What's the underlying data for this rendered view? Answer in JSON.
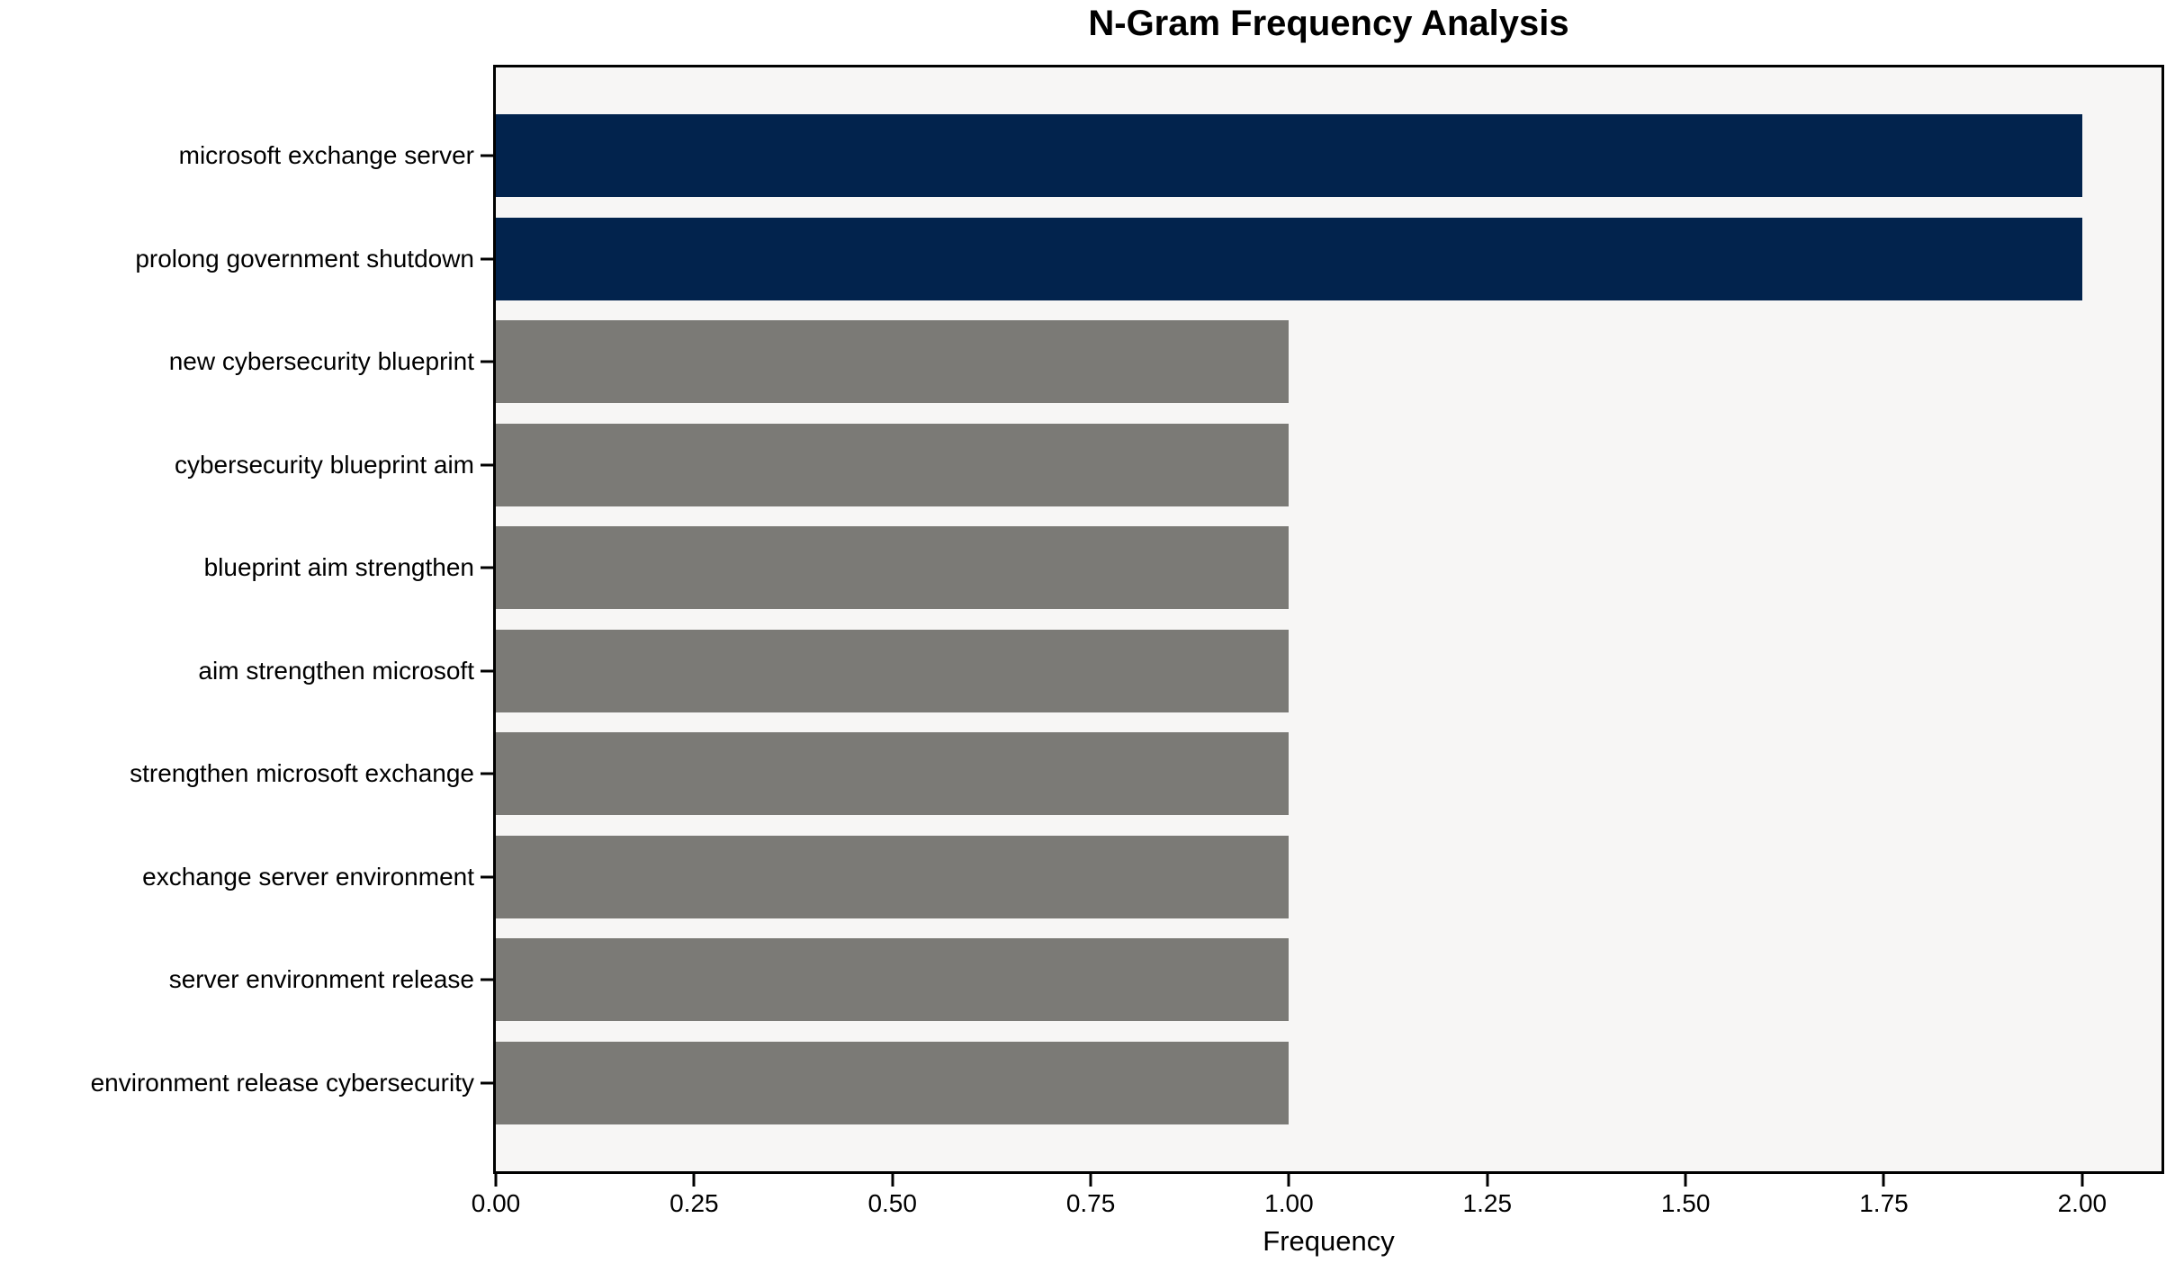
{
  "chart": {
    "title": "N-Gram Frequency Analysis",
    "xlabel": "Frequency"
  },
  "chart_data": {
    "type": "bar",
    "orientation": "horizontal",
    "title": "N-Gram Frequency Analysis",
    "xlabel": "Frequency",
    "ylabel": "",
    "categories": [
      "microsoft exchange server",
      "prolong government shutdown",
      "new cybersecurity blueprint",
      "cybersecurity blueprint aim",
      "blueprint aim strengthen",
      "aim strengthen microsoft",
      "strengthen microsoft exchange",
      "exchange server environment",
      "server environment release",
      "environment release cybersecurity"
    ],
    "values": [
      2,
      2,
      1,
      1,
      1,
      1,
      1,
      1,
      1,
      1
    ],
    "bar_colors": [
      "#02234d",
      "#02234d",
      "#7b7a76",
      "#7b7a76",
      "#7b7a76",
      "#7b7a76",
      "#7b7a76",
      "#7b7a76",
      "#7b7a76",
      "#7b7a76"
    ],
    "xlim": [
      0,
      2.1
    ],
    "xticks": [
      {
        "value": 0.0,
        "label": "0.00"
      },
      {
        "value": 0.25,
        "label": "0.25"
      },
      {
        "value": 0.5,
        "label": "0.50"
      },
      {
        "value": 0.75,
        "label": "0.75"
      },
      {
        "value": 1.0,
        "label": "1.00"
      },
      {
        "value": 1.25,
        "label": "1.25"
      },
      {
        "value": 1.5,
        "label": "1.50"
      },
      {
        "value": 1.75,
        "label": "1.75"
      },
      {
        "value": 2.0,
        "label": "2.00"
      }
    ],
    "grid": false,
    "legend_position": "none",
    "colors": {
      "highlight": "#02234d",
      "base": "#7b7a76",
      "plot_background": "#f7f6f5",
      "figure_background": "#ffffff",
      "axis": "#000000"
    }
  }
}
